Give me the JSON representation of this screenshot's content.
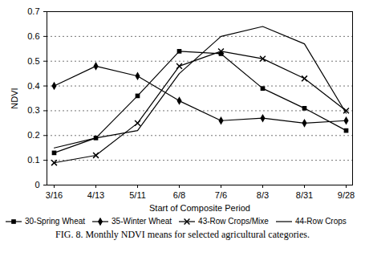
{
  "chart_data": {
    "type": "line",
    "caption": "FIG. 8. Monthly NDVI means for selected agricultural categories.",
    "x_label": "Start of Composite Period",
    "y_label": "NDVI",
    "categories": [
      "3/16",
      "4/13",
      "5/11",
      "6/8",
      "7/6",
      "8/3",
      "8/31",
      "9/28"
    ],
    "series": [
      {
        "name": "30-Spring Wheat",
        "color": "#000000",
        "marker": "square",
        "line_style": "solid",
        "values": [
          0.13,
          0.19,
          0.36,
          0.54,
          0.53,
          0.39,
          0.31,
          0.22
        ]
      },
      {
        "name": "35-Winter Wheat",
        "color": "#000000",
        "marker": "diamond",
        "line_style": "solid",
        "values": [
          0.4,
          0.48,
          0.44,
          0.34,
          0.26,
          0.27,
          0.25,
          0.26
        ]
      },
      {
        "name": "43-Row Crops/Mixe",
        "color": "#000000",
        "marker": "times",
        "line_style": "solid",
        "values": [
          0.09,
          0.12,
          0.25,
          0.48,
          0.54,
          0.51,
          0.43,
          0.3
        ]
      },
      {
        "name": "44-Row Crops",
        "color": "#000000",
        "marker": "none",
        "line_style": "solid",
        "values": [
          0.15,
          0.19,
          0.22,
          0.45,
          0.6,
          0.64,
          0.57,
          0.29
        ]
      }
    ],
    "ylim": [
      0,
      0.7
    ],
    "yticks": [
      0,
      0.1,
      0.2,
      0.3,
      0.4,
      0.5,
      0.6,
      0.7
    ],
    "grid": true,
    "legend": "bottom"
  }
}
